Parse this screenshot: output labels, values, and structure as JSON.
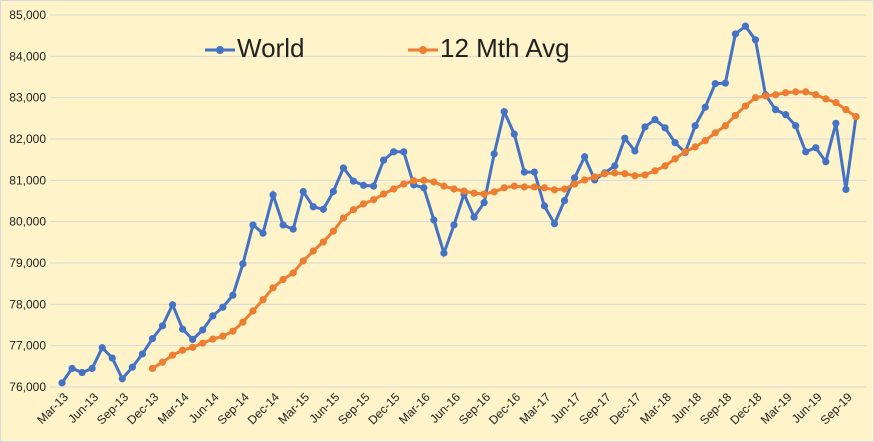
{
  "chart_data": {
    "type": "line",
    "categories": [
      "Mar-13",
      null,
      null,
      "Jun-13",
      null,
      null,
      "Sep-13",
      null,
      null,
      "Dec-13",
      null,
      null,
      "Mar-14",
      null,
      null,
      "Jun-14",
      null,
      null,
      "Sep-14",
      null,
      null,
      "Dec-14",
      null,
      null,
      "Mar-15",
      null,
      null,
      "Jun-15",
      null,
      null,
      "Sep-15",
      null,
      null,
      "Dec-15",
      null,
      null,
      "Mar-16",
      null,
      null,
      "Jun-16",
      null,
      null,
      "Sep-16",
      null,
      null,
      "Dec-16",
      null,
      null,
      "Mar-17",
      null,
      null,
      "Jun-17",
      null,
      null,
      "Sep-17",
      null,
      null,
      "Dec-17",
      null,
      null,
      "Mar-18",
      null,
      null,
      "Jun-18",
      null,
      null,
      "Sep-18",
      null,
      null,
      "Dec-18",
      null,
      null,
      "Mar-19",
      null,
      null,
      "Jun-19",
      null,
      null,
      "Sep-19",
      null
    ],
    "series": [
      {
        "name": "World",
        "color": "#4472c4",
        "values": [
          76100,
          76450,
          76350,
          76450,
          76950,
          76700,
          76200,
          76480,
          76800,
          77170,
          77480,
          77990,
          77400,
          77150,
          77380,
          77720,
          77930,
          78220,
          78980,
          79920,
          79720,
          80650,
          79920,
          79820,
          80730,
          80360,
          80300,
          80730,
          81300,
          80980,
          80880,
          80860,
          81490,
          81690,
          81690,
          80890,
          80820,
          80040,
          79240,
          79920,
          80670,
          80110,
          80460,
          81640,
          82660,
          82120,
          81200,
          81200,
          80380,
          79950,
          80510,
          81060,
          81570,
          81010,
          81180,
          81350,
          82020,
          81710,
          82290,
          82470,
          82270,
          81910,
          81670,
          82320,
          82770,
          83340,
          83350,
          84540,
          84730,
          84400,
          83070,
          82710,
          82590,
          82320,
          81690,
          81790,
          81450,
          82380,
          80780,
          82540
        ]
      },
      {
        "name": "12 Mth Avg",
        "color": "#ed7d31",
        "values": [
          null,
          null,
          null,
          null,
          null,
          null,
          null,
          null,
          null,
          76450,
          76600,
          76770,
          76890,
          76960,
          77060,
          77160,
          77230,
          77350,
          77570,
          77840,
          78110,
          78400,
          78600,
          78760,
          79050,
          79290,
          79510,
          79770,
          80090,
          80290,
          80430,
          80530,
          80670,
          80790,
          80910,
          80990,
          81000,
          80960,
          80860,
          80790,
          80740,
          80690,
          80670,
          80720,
          80820,
          80860,
          80840,
          80840,
          80820,
          80770,
          80790,
          80910,
          81010,
          81080,
          81160,
          81180,
          81160,
          81110,
          81130,
          81230,
          81350,
          81520,
          81690,
          81810,
          81960,
          82150,
          82320,
          82570,
          82800,
          83000,
          83040,
          83070,
          83120,
          83140,
          83140,
          83070,
          82970,
          82880,
          82710,
          82540
        ]
      }
    ],
    "ylim": [
      76000,
      85000
    ],
    "yticks": [
      {
        "value": 76000,
        "label": "76,000"
      },
      {
        "value": 77000,
        "label": "77,000"
      },
      {
        "value": 78000,
        "label": "78,000"
      },
      {
        "value": 79000,
        "label": "79,000"
      },
      {
        "value": 80000,
        "label": "80,000"
      },
      {
        "value": 81000,
        "label": "81,000"
      },
      {
        "value": 82000,
        "label": "82,000"
      },
      {
        "value": 83000,
        "label": "83,000"
      },
      {
        "value": 84000,
        "label": "84,000"
      },
      {
        "value": 85000,
        "label": "85,000"
      }
    ],
    "grid": true,
    "legend": "top"
  }
}
